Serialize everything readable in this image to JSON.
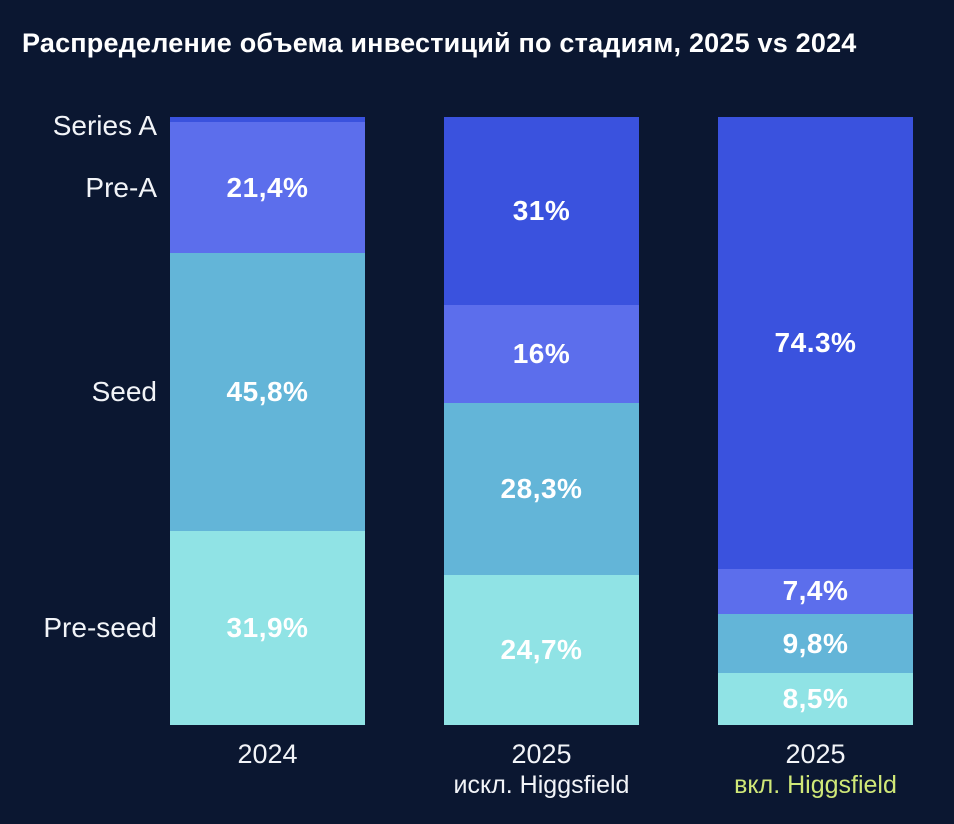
{
  "title": "Распределение объема инвестиций по стадиям, 2025 vs 2024",
  "colors": {
    "background": "#0b1731",
    "text": "#ffffff",
    "sublabel_highlight": "#d0e878",
    "stage_colors": [
      "#3a52de",
      "#5c6eec",
      "#63b5d8",
      "#90e3e5"
    ]
  },
  "chart_data": {
    "type": "bar",
    "stacked": true,
    "orientation": "vertical",
    "unit": "%",
    "ylim": [
      0,
      100
    ],
    "grid": false,
    "legend": "none",
    "title": "Распределение объема инвестиций по стадиям, 2025 vs 2024",
    "stages": [
      "Series A",
      "Pre-A",
      "Seed",
      "Pre-seed"
    ],
    "columns": [
      {
        "x_label": "2024",
        "x_sublabel": "",
        "x_sublabel_highlight": false,
        "segments": [
          {
            "stage": "Series A",
            "value": 0.9,
            "label": ""
          },
          {
            "stage": "Pre-A",
            "value": 21.4,
            "label": "21,4%"
          },
          {
            "stage": "Seed",
            "value": 45.8,
            "label": "45,8%"
          },
          {
            "stage": "Pre-seed",
            "value": 31.9,
            "label": "31,9%"
          }
        ]
      },
      {
        "x_label": "2025",
        "x_sublabel": "искл. Higgsfield",
        "x_sublabel_highlight": false,
        "segments": [
          {
            "stage": "Series A",
            "value": 31.0,
            "label": "31%"
          },
          {
            "stage": "Pre-A",
            "value": 16.0,
            "label": "16%"
          },
          {
            "stage": "Seed",
            "value": 28.3,
            "label": "28,3%"
          },
          {
            "stage": "Pre-seed",
            "value": 24.7,
            "label": "24,7%"
          }
        ]
      },
      {
        "x_label": "2025",
        "x_sublabel": "вкл. Higgsfield",
        "x_sublabel_highlight": true,
        "segments": [
          {
            "stage": "Series A",
            "value": 74.3,
            "label": "74.3%"
          },
          {
            "stage": "Pre-A",
            "value": 7.4,
            "label": "7,4%"
          },
          {
            "stage": "Seed",
            "value": 9.8,
            "label": "9,8%"
          },
          {
            "stage": "Pre-seed",
            "value": 8.5,
            "label": "8,5%"
          }
        ]
      }
    ]
  }
}
